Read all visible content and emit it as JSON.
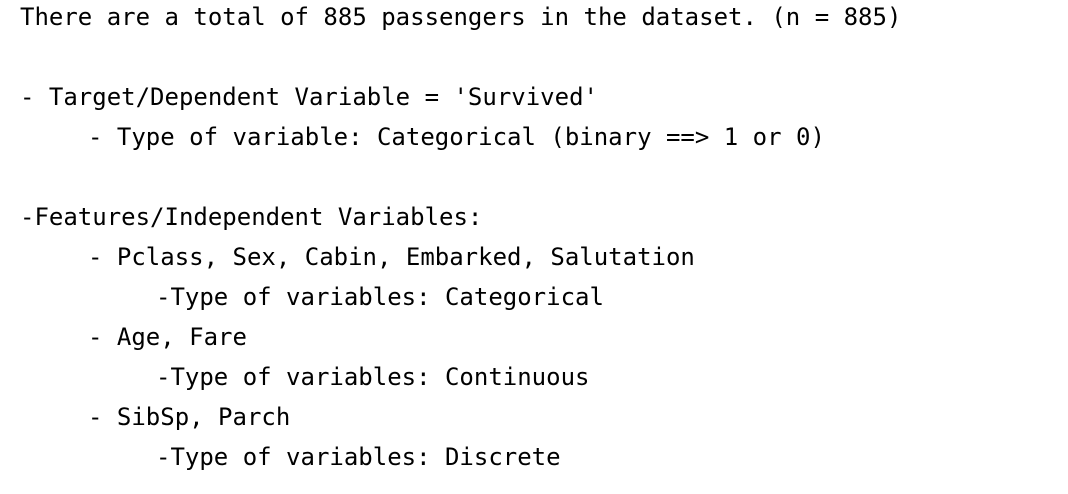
{
  "document": {
    "intro": "There are a total of 885 passengers in the dataset. (n = 885)",
    "target": {
      "heading": "- Target/Dependent Variable = 'Survived'",
      "type": "- Type of variable: Categorical (binary ==> 1 or 0)"
    },
    "features": {
      "heading": "-Features/Independent Variables:",
      "groups": [
        {
          "names": "- Pclass, Sex, Cabin, Embarked, Salutation",
          "type": "-Type of variables: Categorical"
        },
        {
          "names": "- Age, Fare",
          "type": "-Type of variables: Continuous"
        },
        {
          "names": "- SibSp, Parch",
          "type": "-Type of variables: Discrete"
        }
      ]
    }
  }
}
